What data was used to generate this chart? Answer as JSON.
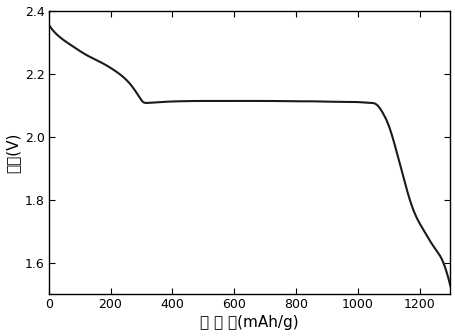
{
  "xlabel": "比 容 量(mAh/g)",
  "ylabel": "电压(V)",
  "xlim": [
    0,
    1300
  ],
  "ylim": [
    1.5,
    2.4
  ],
  "xticks": [
    0,
    200,
    400,
    600,
    800,
    1000,
    1200
  ],
  "yticks": [
    1.6,
    1.8,
    2.0,
    2.2,
    2.4
  ],
  "line_color": "#1a1a1a",
  "line_width": 1.5,
  "background_color": "#ffffff",
  "curve_x": [
    0,
    20,
    50,
    80,
    120,
    170,
    220,
    265,
    290,
    305,
    320,
    340,
    370,
    420,
    480,
    540,
    600,
    660,
    720,
    780,
    840,
    900,
    960,
    1010,
    1040,
    1055,
    1065,
    1075,
    1085,
    1095,
    1105,
    1115,
    1125,
    1140,
    1155,
    1170,
    1185,
    1200,
    1215,
    1230,
    1250,
    1270,
    1285,
    1300
  ],
  "curve_y": [
    2.355,
    2.33,
    2.305,
    2.285,
    2.26,
    2.235,
    2.205,
    2.165,
    2.13,
    2.11,
    2.107,
    2.108,
    2.11,
    2.112,
    2.113,
    2.113,
    2.113,
    2.113,
    2.113,
    2.112,
    2.112,
    2.111,
    2.11,
    2.109,
    2.107,
    2.105,
    2.098,
    2.085,
    2.068,
    2.048,
    2.022,
    1.99,
    1.955,
    1.9,
    1.845,
    1.795,
    1.755,
    1.725,
    1.7,
    1.675,
    1.645,
    1.615,
    1.578,
    1.525
  ]
}
